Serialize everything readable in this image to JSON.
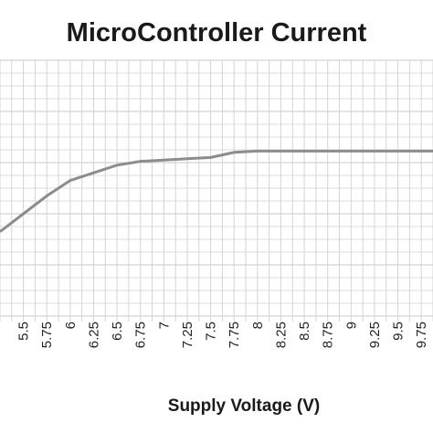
{
  "chart_data": {
    "type": "line",
    "title": "MicroController Current",
    "xlabel": "Supply Voltage (V)",
    "ylabel": "",
    "x_tick_labels": [
      "5.5",
      "5.75",
      "6",
      "6.25",
      "6.5",
      "6.75",
      "7",
      "7.25",
      "7.5",
      "7.75",
      "8",
      "8.25",
      "8.5",
      "8.75",
      "9",
      "9.25",
      "9.5",
      "9.75"
    ],
    "xlim": [
      5.25,
      9.875
    ],
    "grid": true,
    "line_color": "#8c8c8c",
    "series": [
      {
        "x": [
          5.25,
          5.5,
          5.75,
          6.0,
          6.25,
          6.5,
          6.75,
          7.0,
          7.25,
          7.5,
          7.75,
          8.0,
          8.25,
          8.5,
          8.75,
          9.0,
          9.25,
          9.5,
          9.75,
          9.875
        ],
        "y": [
          0.33,
          0.4,
          0.47,
          0.53,
          0.56,
          0.59,
          0.605,
          0.61,
          0.615,
          0.62,
          0.64,
          0.645,
          0.645,
          0.645,
          0.645,
          0.645,
          0.645,
          0.645,
          0.645,
          0.645
        ]
      }
    ]
  }
}
